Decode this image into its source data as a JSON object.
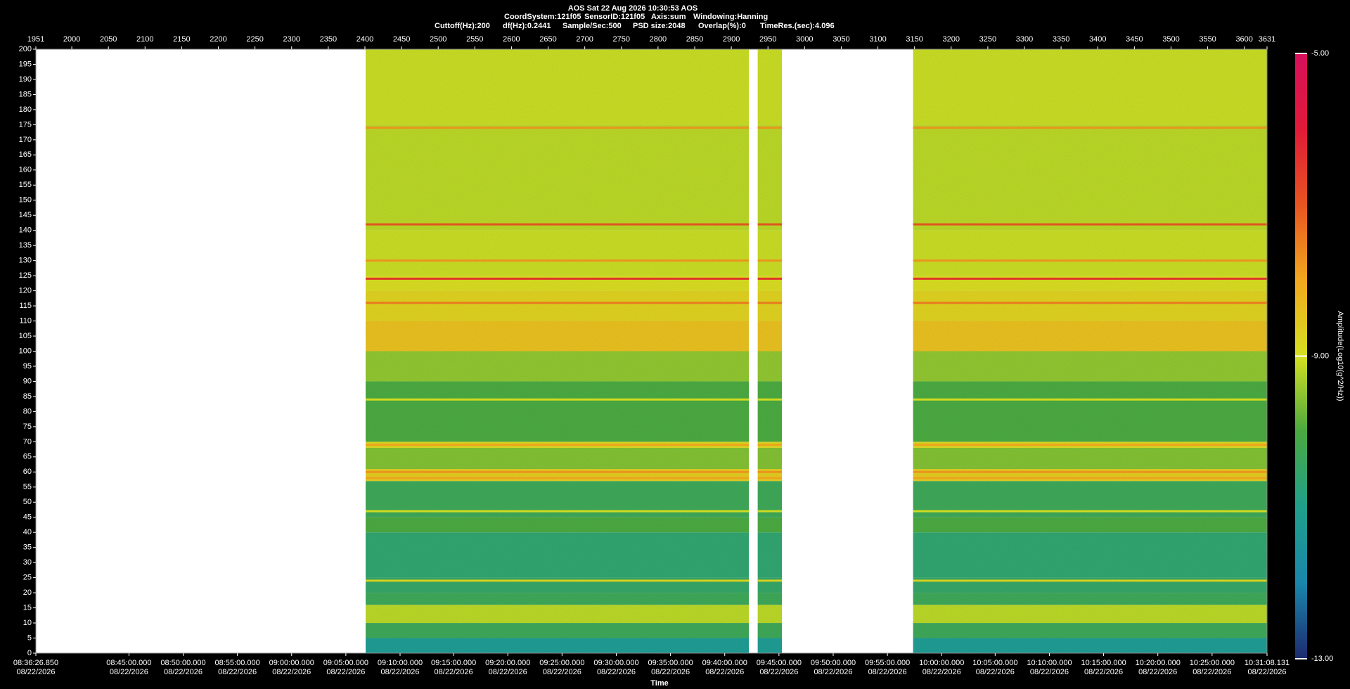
{
  "chart_data": {
    "type": "spectrogram",
    "title": "AOS  Sat 22 Aug 2026 10:30:53  AOS",
    "header_lines": [
      [
        "CoordSystem:121f05",
        "SensorID:121f05",
        "Axis:sum",
        "Windowing:Hanning"
      ],
      [
        "Cuttoff(Hz):200",
        "df(Hz):0.2441",
        "Sample/Sec:500",
        "PSD size:2048",
        "Overlap(%):0",
        "TimeRes.(sec):4.096"
      ]
    ],
    "x_label": "Time",
    "xlim": [
      1951,
      3631
    ],
    "xticks": [
      1951,
      2000,
      2050,
      2100,
      2150,
      2200,
      2250,
      2300,
      2350,
      2400,
      2450,
      2500,
      2550,
      2600,
      2650,
      2700,
      2750,
      2800,
      2850,
      2900,
      2950,
      3000,
      3050,
      3100,
      3150,
      3200,
      3250,
      3300,
      3350,
      3400,
      3450,
      3500,
      3550,
      3600,
      3631
    ],
    "time_date": "08/22/2026",
    "time_ticks": [
      {
        "value": 1951,
        "label": "08:36:26.850"
      },
      {
        "value": 2078,
        "label": "08:45:00.000"
      },
      {
        "value": 2152,
        "label": "08:50:00.000"
      },
      {
        "value": 2226,
        "label": "08:55:00.000"
      },
      {
        "value": 2300,
        "label": "09:00:00.000"
      },
      {
        "value": 2374,
        "label": "09:05:00.000"
      },
      {
        "value": 2448,
        "label": "09:10:00.000"
      },
      {
        "value": 2521,
        "label": "09:15:00.000"
      },
      {
        "value": 2595,
        "label": "09:20:00.000"
      },
      {
        "value": 2669,
        "label": "09:25:00.000"
      },
      {
        "value": 2743,
        "label": "09:30:00.000"
      },
      {
        "value": 2817,
        "label": "09:35:00.000"
      },
      {
        "value": 2891,
        "label": "09:40:00.000"
      },
      {
        "value": 2965,
        "label": "09:45:00.000"
      },
      {
        "value": 3039,
        "label": "09:50:00.000"
      },
      {
        "value": 3113,
        "label": "09:55:00.000"
      },
      {
        "value": 3187,
        "label": "10:00:00.000"
      },
      {
        "value": 3260,
        "label": "10:05:00.000"
      },
      {
        "value": 3334,
        "label": "10:10:00.000"
      },
      {
        "value": 3408,
        "label": "10:15:00.000"
      },
      {
        "value": 3482,
        "label": "10:20:00.000"
      },
      {
        "value": 3556,
        "label": "10:25:00.000"
      },
      {
        "value": 3631,
        "label": "10:31:08.131"
      }
    ],
    "ylim": [
      0,
      200
    ],
    "yticks": [
      0,
      5,
      10,
      15,
      20,
      25,
      30,
      35,
      40,
      45,
      50,
      55,
      60,
      65,
      70,
      75,
      80,
      85,
      90,
      95,
      100,
      105,
      110,
      115,
      120,
      125,
      130,
      135,
      140,
      145,
      150,
      155,
      160,
      165,
      170,
      175,
      180,
      185,
      190,
      195,
      200
    ],
    "segments": [
      [
        2401,
        2924
      ],
      [
        2936,
        2969
      ],
      [
        3148,
        3631
      ]
    ],
    "spectrum": {
      "freq_edges": [
        0,
        5,
        10,
        16,
        20,
        25,
        40,
        45,
        57,
        61,
        68,
        70,
        90,
        100,
        110,
        120,
        125,
        140,
        175,
        200
      ],
      "amplitude": [
        -11.2,
        -10.3,
        -9.2,
        -10.3,
        -10.5,
        -10.6,
        -10.0,
        -10.3,
        -8.6,
        -9.6,
        -8.8,
        -10.0,
        -9.5,
        -8.4,
        -8.7,
        -8.9,
        -9.1,
        -9.2,
        -9.1
      ]
    },
    "tonal_lines": {
      "freq": [
        174,
        142,
        130,
        124,
        116,
        84,
        69,
        60,
        58,
        47,
        24
      ],
      "amplitude": [
        -7.8,
        -7.0,
        -7.8,
        -6.5,
        -7.5,
        -9.0,
        -8.0,
        -7.8,
        -8.0,
        -9.0,
        -8.8
      ]
    },
    "colorbar": {
      "label": "Amplitude(Log10(g^2/Hz))",
      "lim": [
        -13,
        -5
      ],
      "ticks": [
        {
          "value": -5,
          "label": "-5.00"
        },
        {
          "value": -9,
          "label": "-9.00"
        },
        {
          "value": -13,
          "label": "-13.00"
        }
      ],
      "stops": [
        {
          "value": -13,
          "color": "#1c2a6e"
        },
        {
          "value": -12,
          "color": "#1a86aa"
        },
        {
          "value": -11,
          "color": "#1fa08c"
        },
        {
          "value": -10,
          "color": "#4aa840"
        },
        {
          "value": -9,
          "color": "#d4e020"
        },
        {
          "value": -8,
          "color": "#f2a81e"
        },
        {
          "value": -7,
          "color": "#e85420"
        },
        {
          "value": -6,
          "color": "#e01a38"
        },
        {
          "value": -5,
          "color": "#d6105c"
        }
      ]
    }
  }
}
